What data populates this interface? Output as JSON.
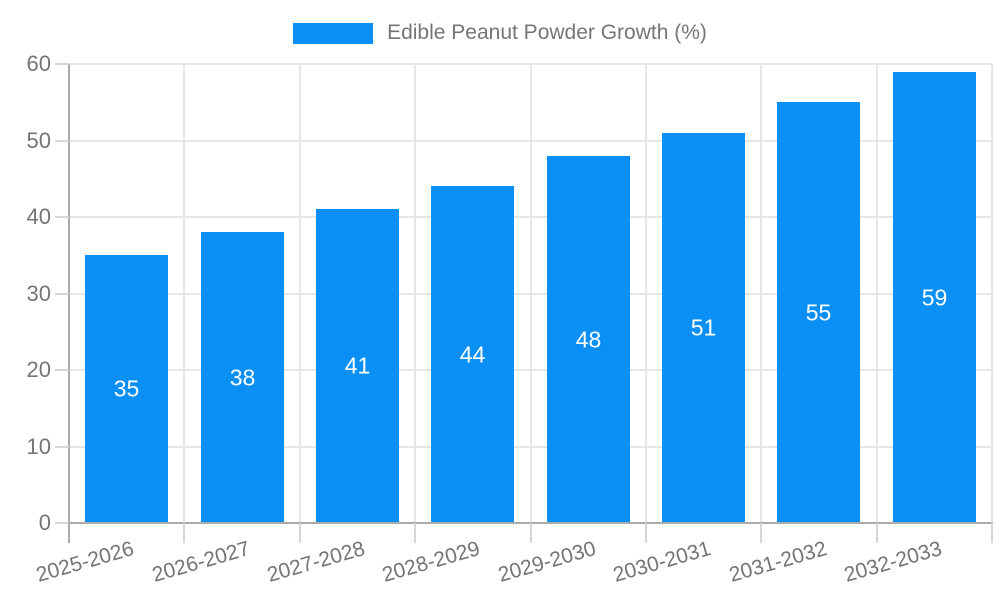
{
  "chart_data": {
    "type": "bar",
    "title": "Edible Peanut Powder Growth (%)",
    "categories": [
      "2025-2026",
      "2026-2027",
      "2027-2028",
      "2028-2029",
      "2029-2030",
      "2030-2031",
      "2031-2032",
      "2032-2033"
    ],
    "series": [
      {
        "name": "Edible Peanut Powder Growth (%)",
        "values": [
          35,
          38,
          41,
          44,
          48,
          51,
          55,
          59
        ]
      }
    ],
    "values": [
      35,
      38,
      41,
      44,
      48,
      51,
      55,
      59
    ],
    "value_labels_shown": true,
    "xlabel": "",
    "ylabel": "",
    "ylim": [
      0,
      60
    ],
    "yticks": [
      0,
      10,
      20,
      30,
      40,
      50,
      60
    ],
    "grid": true,
    "legend_position": "top",
    "x_label_rotation_deg": -16
  },
  "legend": {
    "label": "Edible Peanut Powder Growth (%)"
  },
  "colors": {
    "bar": "#0a8ff5",
    "bar_value_text": "#ffffff",
    "axis_text": "#757575",
    "axis_line": "#ababab",
    "gridline": "#e6e6e6",
    "tick": "#d6d6d6",
    "background": "#ffffff"
  }
}
